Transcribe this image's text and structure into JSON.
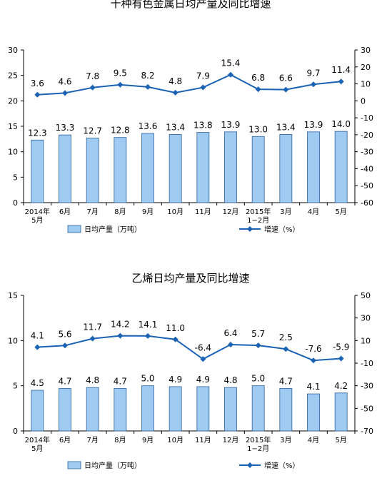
{
  "chart_data": [
    {
      "type": "bar",
      "title": "十种有色金属日均产量及同比增速",
      "categories": [
        "2014年\n5月",
        "6月",
        "7月",
        "8月",
        "9月",
        "10月",
        "11月",
        "12月",
        "2015年\n1−2月",
        "3月",
        "4月",
        "5月"
      ],
      "ylim": [
        0,
        30
      ],
      "yticks": [
        0,
        5,
        10,
        15,
        20,
        25,
        30
      ],
      "y2lim": [
        -60,
        30
      ],
      "y2ticks": [
        -60,
        -50,
        -40,
        -30,
        -20,
        -10,
        0,
        10,
        20,
        30
      ],
      "grid": false,
      "legend_position": "bottom",
      "series": [
        {
          "name": "日均产量（万吨）",
          "type": "bar",
          "axis": "left",
          "color": "#9fcbf3",
          "values": [
            12.3,
            13.3,
            12.7,
            12.8,
            13.6,
            13.4,
            13.8,
            13.9,
            13.0,
            13.4,
            13.9,
            14.0
          ],
          "labels": [
            "12.3",
            "13.3",
            "12.7",
            "12.8",
            "13.6",
            "13.4",
            "13.8",
            "13.9",
            "13.0",
            "13.4",
            "13.9",
            "14.0"
          ]
        },
        {
          "name": "增速（%）",
          "type": "line",
          "axis": "right",
          "color": "#1a62b4",
          "values": [
            3.6,
            4.6,
            7.8,
            9.5,
            8.2,
            4.8,
            7.9,
            15.4,
            6.8,
            6.6,
            9.7,
            11.4
          ],
          "labels": [
            "3.6",
            "4.6",
            "7.8",
            "9.5",
            "8.2",
            "4.8",
            "7.9",
            "15.4",
            "6.8",
            "6.6",
            "9.7",
            "11.4"
          ]
        }
      ]
    },
    {
      "type": "bar",
      "title": "乙烯日均产量及同比增速",
      "categories": [
        "2014年\n5月",
        "6月",
        "7月",
        "8月",
        "9月",
        "10月",
        "11月",
        "12月",
        "2015年\n1−2月",
        "3月",
        "4月",
        "5月"
      ],
      "ylim": [
        0,
        15
      ],
      "yticks": [
        0,
        5,
        10,
        15
      ],
      "y2lim": [
        -70,
        50
      ],
      "y2ticks": [
        -70,
        -50,
        -30,
        -10,
        10,
        30,
        50
      ],
      "grid": false,
      "legend_position": "bottom",
      "series": [
        {
          "name": "日均产量（万吨）",
          "type": "bar",
          "axis": "left",
          "color": "#9fcbf3",
          "values": [
            4.5,
            4.7,
            4.8,
            4.7,
            5.0,
            4.9,
            4.9,
            4.8,
            5.0,
            4.7,
            4.1,
            4.2
          ],
          "labels": [
            "4.5",
            "4.7",
            "4.8",
            "4.7",
            "5.0",
            "4.9",
            "4.9",
            "4.8",
            "5.0",
            "4.7",
            "4.1",
            "4.2"
          ]
        },
        {
          "name": "增速（%）",
          "type": "line",
          "axis": "right",
          "color": "#1a62b4",
          "values": [
            4.1,
            5.6,
            11.7,
            14.2,
            14.1,
            11.0,
            -6.4,
            6.4,
            5.7,
            2.5,
            -7.6,
            -5.9
          ],
          "labels": [
            "4.1",
            "5.6",
            "11.7",
            "14.2",
            "14.1",
            "11.0",
            "-6.4",
            "6.4",
            "5.7",
            "2.5",
            "-7.6",
            "-5.9"
          ]
        }
      ]
    }
  ]
}
